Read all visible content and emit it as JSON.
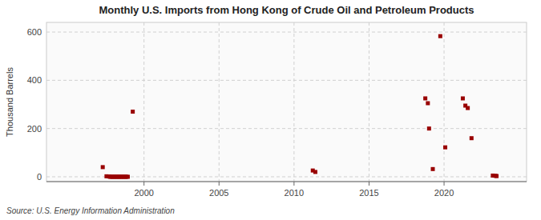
{
  "chart_data": {
    "type": "scatter",
    "title": "Monthly U.S. Imports from Hong Kong of Crude Oil and Petroleum Products",
    "ylabel": "Thousand Barrels",
    "source": "Source: U.S. Energy Information Administration",
    "x": [
      1997.25,
      1997.5,
      1997.67,
      1997.75,
      1997.83,
      1997.92,
      1998.0,
      1998.08,
      1998.17,
      1998.25,
      1998.33,
      1998.42,
      1998.5,
      1998.58,
      1998.67,
      1998.75,
      1998.83,
      1998.92,
      1999.25,
      2011.25,
      2011.42,
      2018.75,
      2018.92,
      2019.0,
      2019.25,
      2019.75,
      2020.08,
      2021.25,
      2021.42,
      2021.58,
      2021.83,
      2023.25,
      2023.42,
      2023.5
    ],
    "values": [
      40,
      2,
      1,
      0,
      0,
      0,
      0,
      0,
      0,
      0,
      0,
      0,
      0,
      0,
      0,
      0,
      0,
      0,
      270,
      26,
      20,
      325,
      305,
      200,
      32,
      583,
      122,
      325,
      295,
      285,
      160,
      5,
      4,
      3
    ],
    "color": "#990000",
    "marker": "square",
    "xlim": [
      1993.5,
      2025.5
    ],
    "ylim": [
      -20,
      640
    ],
    "xticks": [
      2000,
      2005,
      2010,
      2015,
      2020
    ],
    "yticks": [
      0,
      200,
      400,
      600
    ],
    "grid": true
  }
}
